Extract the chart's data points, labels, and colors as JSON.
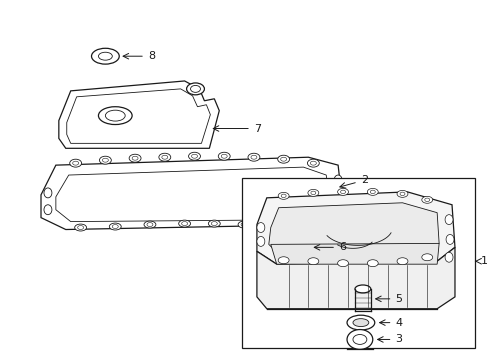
{
  "bg_color": "#ffffff",
  "line_color": "#1a1a1a",
  "lw": 0.9,
  "tlw": 0.6,
  "fig_width": 4.89,
  "fig_height": 3.6,
  "dpi": 100
}
